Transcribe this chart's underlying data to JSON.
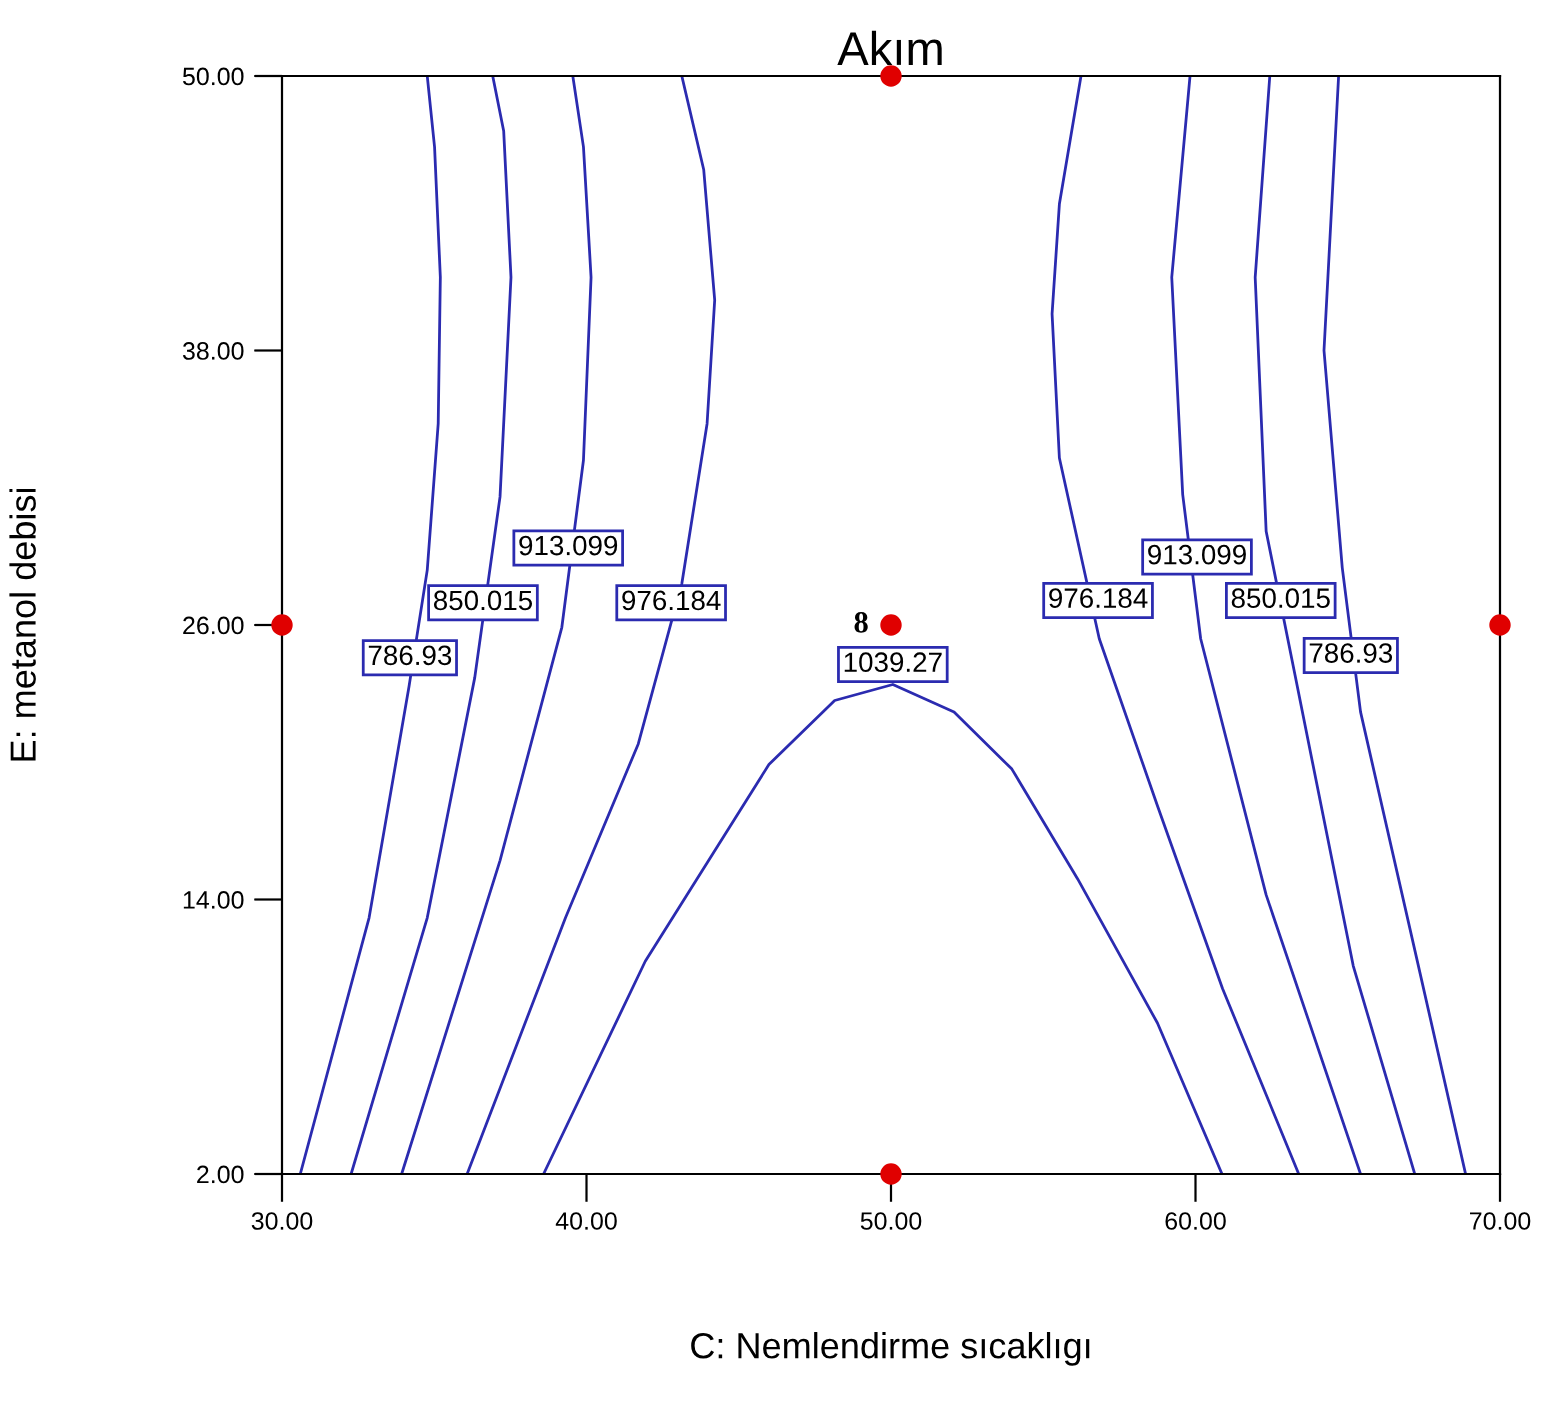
{
  "chart_data": {
    "type": "line",
    "title": "Akım",
    "xlabel": "C: Nemlendirme sıcaklıgı",
    "ylabel": "E: metanol debisi",
    "xlim": [
      30,
      70
    ],
    "ylim": [
      2,
      50
    ],
    "xticks": [
      {
        "value": 30,
        "label": "30.00"
      },
      {
        "value": 40,
        "label": "40.00"
      },
      {
        "value": 50,
        "label": "50.00"
      },
      {
        "value": 60,
        "label": "60.00"
      },
      {
        "value": 70,
        "label": "70.00"
      }
    ],
    "yticks": [
      {
        "value": 2,
        "label": "2.00"
      },
      {
        "value": 14,
        "label": "14.00"
      },
      {
        "value": 26,
        "label": "26.00"
      },
      {
        "value": 38,
        "label": "38.00"
      },
      {
        "value": 50,
        "label": "50.00"
      }
    ],
    "grid": false,
    "legend": false,
    "line_style": "solid",
    "marker": "none",
    "series": [
      {
        "color": "#2b2bb0",
        "x": [
          30.6,
          32.86,
          34.17,
          34.77,
          35.13,
          35.2,
          35.01,
          34.77
        ],
        "values": [
          2,
          13.2,
          23.3,
          28.4,
          34.8,
          41.2,
          46.9,
          50
        ]
      },
      {
        "color": "#2b2bb0",
        "x": [
          32.27,
          34.77,
          36.33,
          37.16,
          37.52,
          37.28,
          36.92
        ],
        "values": [
          2,
          13.2,
          23.7,
          31.6,
          41.2,
          47.6,
          50
        ]
      },
      {
        "color": "#2b2bb0",
        "x": [
          33.93,
          37.16,
          39.19,
          39.9,
          40.15,
          39.9,
          39.55
        ],
        "values": [
          2,
          15.7,
          25.9,
          33.2,
          41.2,
          46.9,
          50
        ]
      },
      {
        "color": "#2b2bb0",
        "x": [
          36.08,
          39.31,
          41.7,
          42.78,
          43.13,
          43.96,
          44.21,
          43.85,
          43.13
        ],
        "values": [
          2,
          13.2,
          20.8,
          26.1,
          27.8,
          34.8,
          40.2,
          45.9,
          50
        ]
      },
      {
        "color": "#2b2bb0",
        "x": [
          38.59,
          41.93,
          45.99,
          48.15,
          50.06,
          52.07,
          53.97,
          56.13,
          58.75,
          60.87
        ],
        "values": [
          2,
          11.3,
          19.9,
          22.7,
          23.4,
          22.2,
          19.7,
          14.9,
          8.6,
          2
        ]
      },
      {
        "color": "#2b2bb0",
        "x": [
          56.24,
          55.53,
          55.29,
          55.53,
          56.84,
          58.75,
          60.89,
          63.39
        ],
        "values": [
          50,
          44.4,
          39.6,
          33.3,
          25.4,
          18.1,
          10.1,
          2
        ]
      },
      {
        "color": "#2b2bb0",
        "x": [
          59.82,
          59.22,
          59.58,
          60.17,
          62.32,
          65.42
        ],
        "values": [
          50,
          41.2,
          31.7,
          25.4,
          14.2,
          2
        ]
      },
      {
        "color": "#2b2bb0",
        "x": [
          62.44,
          61.96,
          62.32,
          63.27,
          65.18,
          67.2
        ],
        "values": [
          50,
          41.2,
          30.1,
          23.8,
          11.1,
          2
        ]
      },
      {
        "color": "#2b2bb0",
        "x": [
          64.7,
          64.22,
          64.82,
          65.42,
          67.32,
          68.87
        ],
        "values": [
          50,
          38,
          28.5,
          22.2,
          11.1,
          2
        ]
      },
      {
        "type": "scatter",
        "marker": "circle",
        "color": "#e00000",
        "x": [
          50,
          30,
          50,
          70,
          50
        ],
        "values": [
          50,
          26,
          26,
          26,
          2
        ]
      }
    ],
    "annotations": [
      {
        "text": "786.93",
        "x": 34.2,
        "y": 23.7
      },
      {
        "text": "850.015",
        "x": 36.6,
        "y": 26.1
      },
      {
        "text": "913.099",
        "x": 39.4,
        "y": 28.5
      },
      {
        "text": "976.184",
        "x": 42.78,
        "y": 26.1
      },
      {
        "text": "1039.27",
        "x": 50.06,
        "y": 23.4
      },
      {
        "text": "976.184",
        "x": 56.8,
        "y": 26.2
      },
      {
        "text": "913.099",
        "x": 60.05,
        "y": 28.1
      },
      {
        "text": "850.015",
        "x": 62.8,
        "y": 26.2
      },
      {
        "text": "786.93",
        "x": 65.1,
        "y": 23.8
      },
      {
        "text": "8",
        "x": 50,
        "y": 26
      }
    ]
  }
}
